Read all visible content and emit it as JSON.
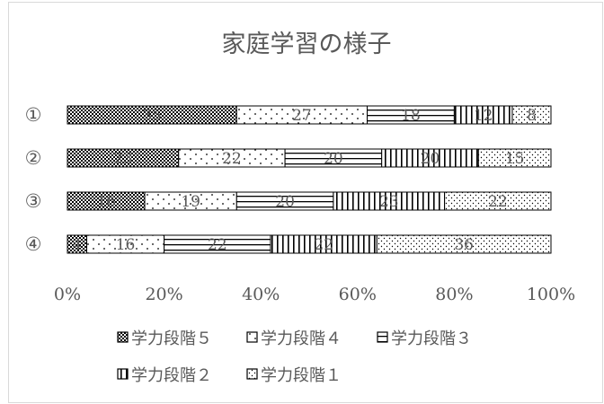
{
  "chart_data": {
    "type": "bar",
    "stacked": "percent",
    "orientation": "horizontal",
    "title": "家庭学習の様子",
    "categories": [
      "①",
      "②",
      "③",
      "④"
    ],
    "x_tick_labels": [
      "0%",
      "20%",
      "40%",
      "60%",
      "80%",
      "100%"
    ],
    "xlim": [
      0,
      100
    ],
    "grid": false,
    "legend_position": "bottom",
    "series": [
      {
        "name": "学力段階５",
        "values": [
          35,
          23,
          16,
          4
        ]
      },
      {
        "name": "学力段階４",
        "values": [
          27,
          22,
          19,
          16
        ]
      },
      {
        "name": "学力段階３",
        "values": [
          18,
          20,
          20,
          22
        ]
      },
      {
        "name": "学力段階２",
        "values": [
          12,
          20,
          23,
          22
        ]
      },
      {
        "name": "学力段階１",
        "values": [
          8,
          15,
          22,
          36
        ]
      }
    ]
  }
}
